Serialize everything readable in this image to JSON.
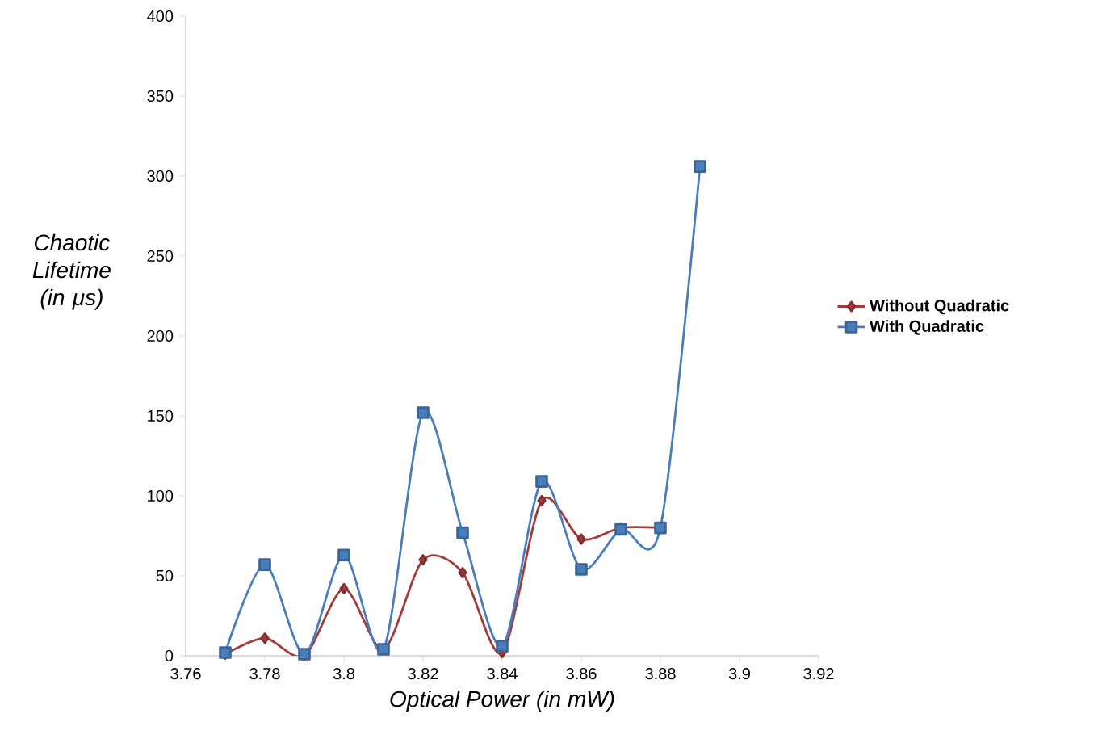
{
  "chart_data": {
    "type": "line",
    "xlabel": "Optical Power (in mW)",
    "ylabel": "Chaotic Lifetime (in μs)",
    "x": [
      3.77,
      3.78,
      3.79,
      3.8,
      3.81,
      3.82,
      3.83,
      3.84,
      3.85,
      3.86,
      3.87,
      3.88,
      3.89
    ],
    "series": [
      {
        "name": "Without Quadratic",
        "color": "#a33b3b",
        "marker": "diamond",
        "values": [
          1,
          11,
          0,
          42,
          4,
          60,
          52,
          2,
          97,
          73,
          80,
          80,
          null
        ]
      },
      {
        "name": "With Quadratic",
        "color": "#4a7ebb",
        "marker": "square",
        "values": [
          2,
          57,
          1,
          63,
          4,
          152,
          77,
          6,
          109,
          54,
          79,
          80,
          306
        ]
      }
    ],
    "xlim": [
      3.76,
      3.92
    ],
    "ylim": [
      0,
      400
    ],
    "xticks": [
      3.76,
      3.78,
      {
        "value": 3.8,
        "label": "3.8"
      },
      3.82,
      3.84,
      3.86,
      3.88,
      {
        "value": 3.9,
        "label": "3.9"
      },
      3.92
    ],
    "yticks": [
      0,
      50,
      100,
      150,
      200,
      250,
      300,
      350,
      400
    ],
    "grid": false,
    "legend": "right",
    "line_style": "solid"
  }
}
